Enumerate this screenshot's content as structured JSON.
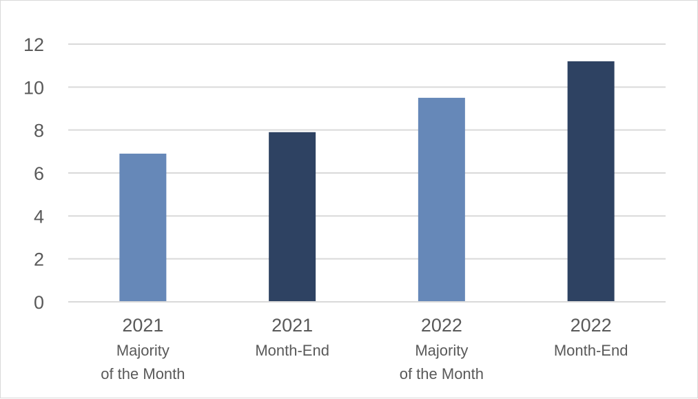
{
  "chart_data": {
    "type": "bar",
    "title": "",
    "xlabel": "",
    "ylabel": "",
    "ylim": [
      0,
      12
    ],
    "yticks": [
      0,
      2,
      4,
      6,
      8,
      10,
      12
    ],
    "ytick_labels": [
      "0",
      "2",
      "4",
      "6",
      "8",
      "10",
      "12"
    ],
    "grid": true,
    "legend": "none",
    "categories": [
      {
        "year": "2021",
        "lines": [
          "Majority",
          "of the Month"
        ]
      },
      {
        "year": "2021",
        "lines": [
          "Month-End"
        ]
      },
      {
        "year": "2022",
        "lines": [
          "Majority",
          "of the Month"
        ]
      },
      {
        "year": "2022",
        "lines": [
          "Month-End"
        ]
      }
    ],
    "values": [
      6.9,
      7.9,
      9.5,
      11.2
    ],
    "bar_colors": [
      "#6688b8",
      "#2e4262",
      "#6688b8",
      "#2e4262"
    ],
    "grid_color": "#d9d9d9",
    "text_color": "#595959"
  }
}
